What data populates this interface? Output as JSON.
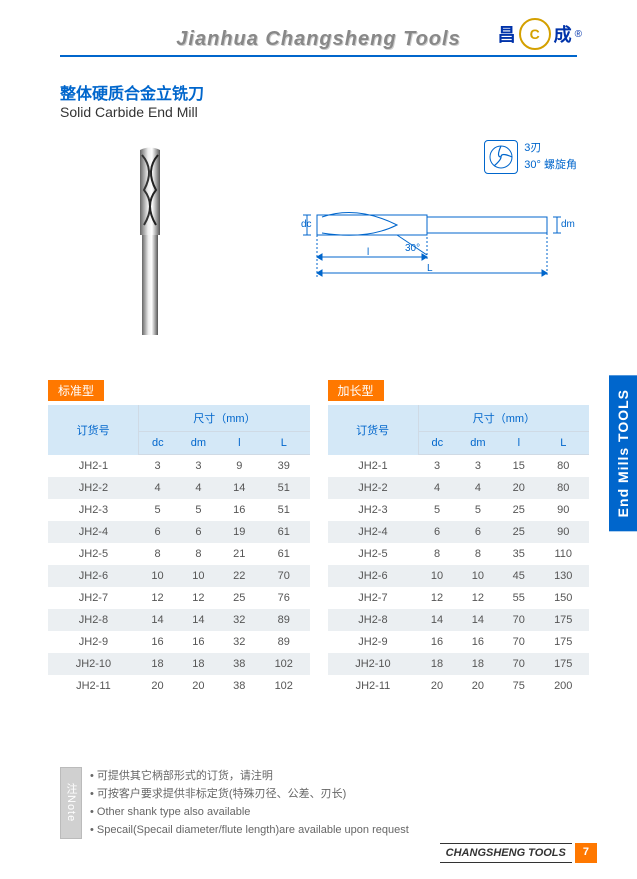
{
  "header": {
    "company_en": "Jianhua Changsheng Tools",
    "logo_cn_left": "昌",
    "logo_cn_right": "成",
    "logo_mark": "®"
  },
  "title": {
    "cn": "整体硬质合金立铣刀",
    "en": "Solid Carbide End Mill"
  },
  "icon_notes": {
    "line1": "3刃",
    "line2": "30° 螺旋角"
  },
  "drawing_labels": {
    "dc": "dc",
    "dm": "dm",
    "l_small": "l",
    "L_big": "L",
    "angle": "30°"
  },
  "table1": {
    "tag": "标准型",
    "order_header": "订货号",
    "size_header": "尺寸（mm）",
    "cols": [
      "dc",
      "dm",
      "l",
      "L"
    ],
    "rows": [
      [
        "JH2-1",
        "3",
        "3",
        "9",
        "39"
      ],
      [
        "JH2-2",
        "4",
        "4",
        "14",
        "51"
      ],
      [
        "JH2-3",
        "5",
        "5",
        "16",
        "51"
      ],
      [
        "JH2-4",
        "6",
        "6",
        "19",
        "61"
      ],
      [
        "JH2-5",
        "8",
        "8",
        "21",
        "61"
      ],
      [
        "JH2-6",
        "10",
        "10",
        "22",
        "70"
      ],
      [
        "JH2-7",
        "12",
        "12",
        "25",
        "76"
      ],
      [
        "JH2-8",
        "14",
        "14",
        "32",
        "89"
      ],
      [
        "JH2-9",
        "16",
        "16",
        "32",
        "89"
      ],
      [
        "JH2-10",
        "18",
        "18",
        "38",
        "102"
      ],
      [
        "JH2-11",
        "20",
        "20",
        "38",
        "102"
      ]
    ]
  },
  "table2": {
    "tag": "加长型",
    "order_header": "订货号",
    "size_header": "尺寸（mm）",
    "cols": [
      "dc",
      "dm",
      "l",
      "L"
    ],
    "rows": [
      [
        "JH2-1",
        "3",
        "3",
        "15",
        "80"
      ],
      [
        "JH2-2",
        "4",
        "4",
        "20",
        "80"
      ],
      [
        "JH2-3",
        "5",
        "5",
        "25",
        "90"
      ],
      [
        "JH2-4",
        "6",
        "6",
        "25",
        "90"
      ],
      [
        "JH2-5",
        "8",
        "8",
        "35",
        "110"
      ],
      [
        "JH2-6",
        "10",
        "10",
        "45",
        "130"
      ],
      [
        "JH2-7",
        "12",
        "12",
        "55",
        "150"
      ],
      [
        "JH2-8",
        "14",
        "14",
        "70",
        "175"
      ],
      [
        "JH2-9",
        "16",
        "16",
        "70",
        "175"
      ],
      [
        "JH2-10",
        "18",
        "18",
        "70",
        "175"
      ],
      [
        "JH2-11",
        "20",
        "20",
        "75",
        "200"
      ]
    ]
  },
  "notes": {
    "label": "注Note",
    "lines": [
      "可提供其它柄部形式的订货，请注明",
      "可按客户要求提供非标定货(特殊刃径、公差、刃长)",
      "Other shank type also available",
      "Specail(Specail diameter/flute length)are available upon request"
    ]
  },
  "footer": {
    "text": "CHANGSHENG TOOLS",
    "page": "7"
  },
  "side_tab": "End Mills TOOLS",
  "colors": {
    "blue": "#0066cc",
    "orange": "#ff7800",
    "header_bg": "#d4e8f7",
    "stripe": "#ebeff2"
  }
}
